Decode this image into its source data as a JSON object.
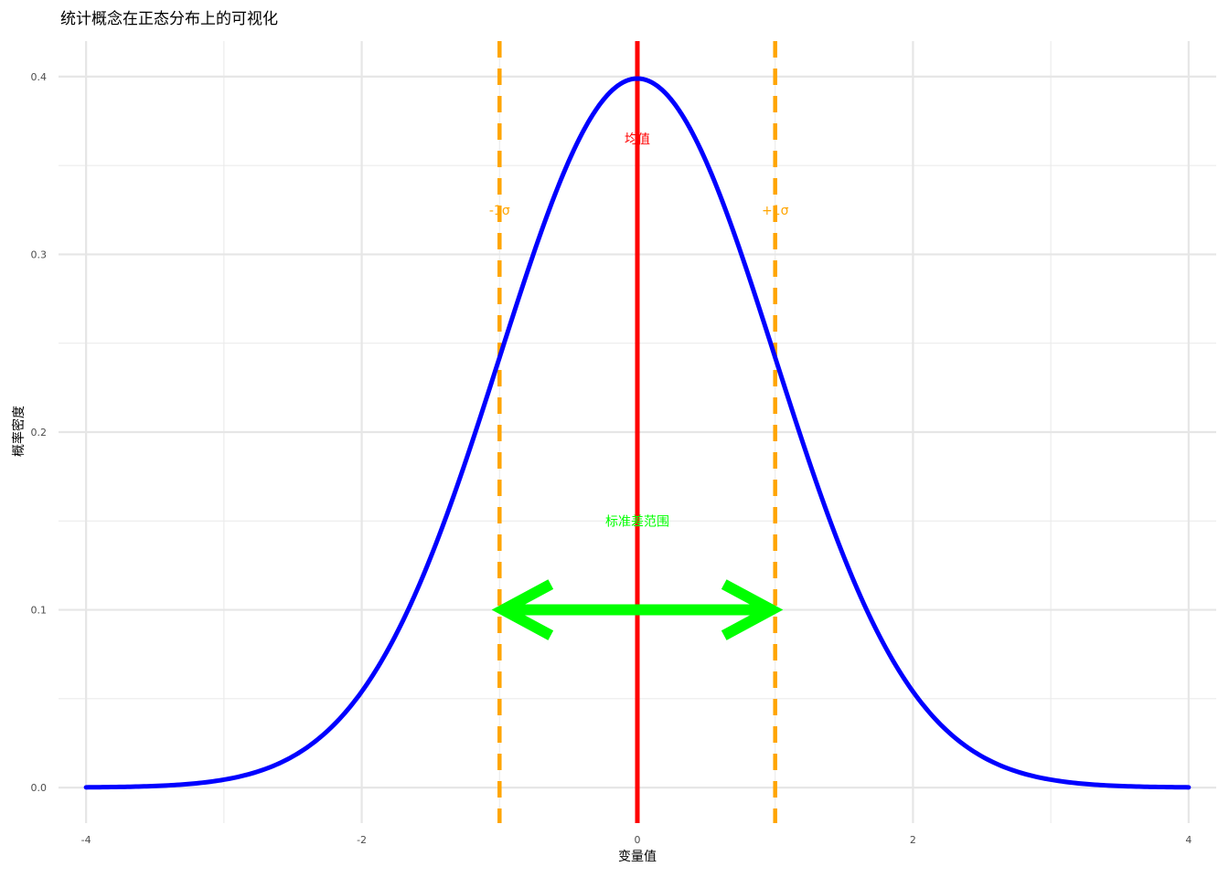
{
  "chart_data": {
    "type": "line",
    "title": "统计概念在正态分布上的可视化",
    "xlabel": "变量值",
    "ylabel": "概率密度",
    "xlim": [
      -4.2,
      4.2
    ],
    "ylim": [
      -0.02,
      0.42
    ],
    "x_ticks": [
      -4,
      -2,
      0,
      2,
      4
    ],
    "x_tick_labels": [
      "-4",
      "-2",
      "0",
      "2",
      "4"
    ],
    "y_ticks": [
      0.0,
      0.1,
      0.2,
      0.3,
      0.4
    ],
    "y_tick_labels": [
      "0.0",
      "0.1",
      "0.2",
      "0.3",
      "0.4"
    ],
    "x_minor_ticks": [
      -3,
      -1,
      1,
      3
    ],
    "y_minor_ticks": [
      0.05,
      0.15,
      0.25,
      0.35
    ],
    "grid": true,
    "series": [
      {
        "curve": "normal-density",
        "mean": 0,
        "sd": 1,
        "x_range": [
          -4,
          4
        ],
        "color": "#0000ff"
      }
    ],
    "vlines": [
      {
        "x": 0,
        "color": "#ff0000",
        "style": "solid"
      },
      {
        "x": -1,
        "color": "#ffa500",
        "style": "dashed"
      },
      {
        "x": 1,
        "color": "#ffa500",
        "style": "dashed"
      }
    ],
    "arrow": {
      "x_from": -1,
      "x_to": 1,
      "y": 0.1,
      "color": "#00ff00",
      "heads": "both"
    },
    "annotations": [
      {
        "text": "均值",
        "x": 0,
        "y": 0.365,
        "color": "#ff0000"
      },
      {
        "text": "-1σ",
        "x": -1,
        "y": 0.325,
        "color": "#ffa500"
      },
      {
        "text": "+1σ",
        "x": 1,
        "y": 0.325,
        "color": "#ffa500"
      },
      {
        "text": "标准差范围",
        "x": 0,
        "y": 0.15,
        "color": "#00ff00"
      }
    ]
  }
}
